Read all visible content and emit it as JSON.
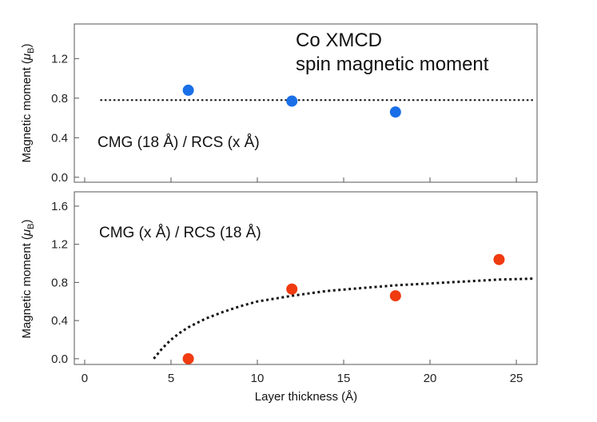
{
  "chart_data": [
    {
      "type": "scatter",
      "title": "",
      "ylabel_text": "Magnetic moment (",
      "ylabel_symbol": "μ",
      "ylabel_sub": "B",
      "ylabel_close": ")",
      "ylim": [
        -0.05,
        1.55
      ],
      "xlim": [
        -0.6,
        26.2
      ],
      "yticks": [
        0.0,
        0.4,
        0.8,
        1.2
      ],
      "ytick_labels": [
        "0.0",
        "0.4",
        "0.8",
        "1.2"
      ],
      "xticks": [
        0,
        5,
        10,
        15,
        20,
        25
      ],
      "annotations": [
        "Co XMCD",
        "spin magnetic moment",
        "CMG (18 Å) / RCS (x Å)"
      ],
      "series": [
        {
          "color": "#1a6fe8",
          "x": [
            6,
            12,
            18
          ],
          "y": [
            0.88,
            0.77,
            0.66
          ]
        }
      ],
      "reference_line": {
        "style": "dotted",
        "y": 0.78
      },
      "grid": false
    },
    {
      "type": "scatter",
      "title": "",
      "xlabel": "Layer thickness (Å)",
      "ylabel_text": "Magnetic moment (",
      "ylabel_symbol": "μ",
      "ylabel_sub": "B",
      "ylabel_close": ")",
      "ylim": [
        -0.06,
        1.75
      ],
      "xlim": [
        -0.6,
        26.2
      ],
      "yticks": [
        0.0,
        0.4,
        0.8,
        1.2,
        1.6
      ],
      "ytick_labels": [
        "0.0",
        "0.4",
        "0.8",
        "1.2",
        "1.6"
      ],
      "xticks": [
        0,
        5,
        10,
        15,
        20,
        25
      ],
      "xtick_labels": [
        "0",
        "5",
        "10",
        "15",
        "20",
        "25"
      ],
      "annotations": [
        "CMG (x Å) / RCS (18 Å)"
      ],
      "series": [
        {
          "color": "#f03a10",
          "x": [
            6,
            12,
            18,
            24
          ],
          "y": [
            0.0,
            0.73,
            0.66,
            1.04
          ]
        }
      ],
      "fit_curve": {
        "style": "dotted",
        "x": [
          4,
          4.5,
          5,
          5.5,
          6,
          7,
          8,
          9,
          10,
          11,
          12,
          14,
          16,
          18,
          20,
          22,
          24,
          26
        ],
        "y": [
          0.0,
          0.11,
          0.2,
          0.27,
          0.33,
          0.42,
          0.49,
          0.55,
          0.6,
          0.63,
          0.66,
          0.71,
          0.74,
          0.77,
          0.79,
          0.81,
          0.83,
          0.84
        ]
      },
      "grid": false
    }
  ]
}
